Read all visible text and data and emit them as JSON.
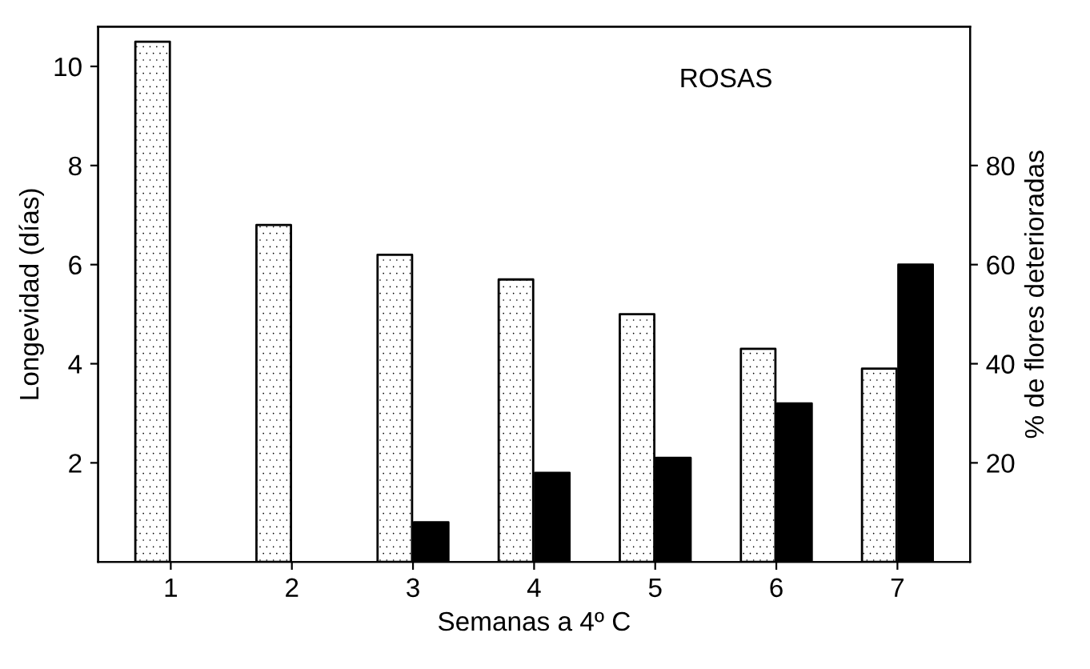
{
  "chart_data": {
    "type": "bar",
    "xlabel": "Semanas a 4º C",
    "ylabel": "Longevidad (días)",
    "y2label": "% de flores deterioradas",
    "annotations": [
      "ROSAS"
    ],
    "categories": [
      "1",
      "2",
      "3",
      "4",
      "5",
      "6",
      "7"
    ],
    "series": [
      {
        "color": "#ffffff",
        "values": [
          10.5,
          6.8,
          6.2,
          5.7,
          5.0,
          4.3,
          3.9
        ]
      },
      {
        "color": "#000000",
        "axis": "y2",
        "values": [
          null,
          null,
          8,
          18,
          21,
          32,
          60
        ]
      }
    ],
    "ylim": [
      0,
      10.8
    ],
    "yticks": [
      2,
      4,
      6,
      8,
      10
    ],
    "y2lim": [
      0,
      108
    ],
    "y2ticks": [
      20,
      40,
      60,
      80
    ],
    "grid": false,
    "legend": false
  }
}
